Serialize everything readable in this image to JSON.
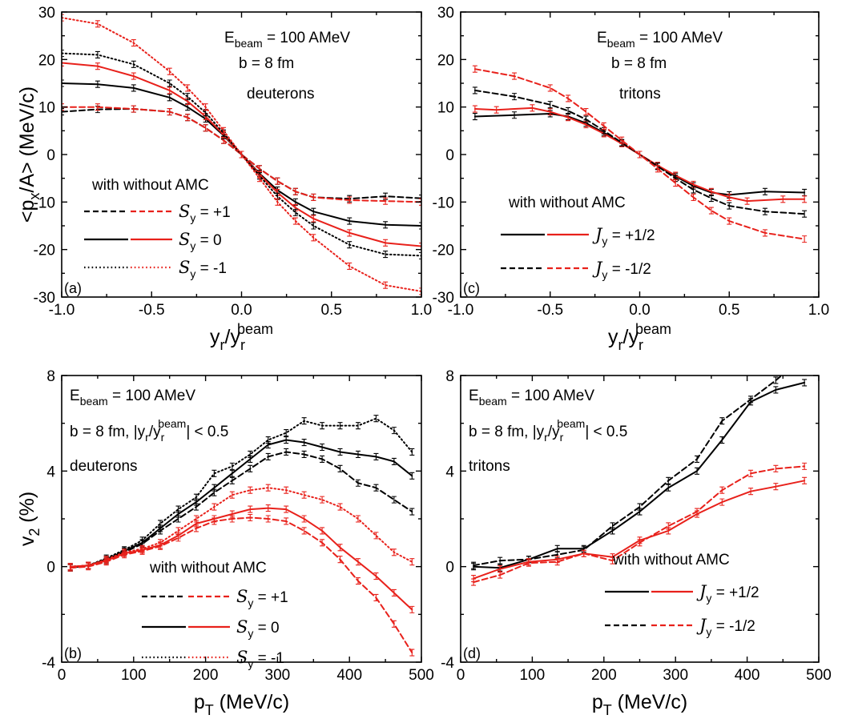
{
  "chart_data": [
    {
      "panel": "(a)",
      "type": "line",
      "xlim": [
        -1.0,
        1.0
      ],
      "ylim": [
        -30,
        30
      ],
      "xticks": [
        -1.0,
        -0.5,
        0.0,
        0.5,
        1.0
      ],
      "xtick_labels": [
        "-1.0",
        "-0.5",
        "0.0",
        "0.5",
        "1.0"
      ],
      "yticks": [
        -30,
        -20,
        -10,
        0,
        10,
        20,
        30
      ],
      "ytick_labels": [
        "-30",
        "-20",
        "-10",
        "0",
        "10",
        "20",
        "30"
      ],
      "ylabel": "<p",
      "ylabel_sub": "x",
      "ylabel_rest": "/A> (MeV/c)",
      "xlabel": "y",
      "xlabel_sub": "r",
      "xlabel_mid": "/y",
      "xlabel_sub2": "r",
      "xlabel_sup": "beam",
      "annotations": {
        "energy_prefix": "E",
        "energy_sub": "beam",
        "energy_value": " = 100 AMeV",
        "impact": "b = 8 fm",
        "particle": "deuterons"
      },
      "legend": {
        "header": "with without  AMC",
        "entries": [
          {
            "style": "dash",
            "symbol": "S",
            "sub": "y",
            "value": " = +1"
          },
          {
            "style": "solid",
            "symbol": "S",
            "sub": "y",
            "value": " = 0"
          },
          {
            "style": "dot",
            "symbol": "S",
            "sub": "y",
            "value": " = -1"
          }
        ]
      },
      "series": [
        {
          "color": "#000000",
          "style": "dash",
          "x": [
            -1.0,
            -0.8,
            -0.6,
            -0.4,
            -0.3,
            -0.2,
            -0.1,
            0.0,
            0.1,
            0.2,
            0.3,
            0.4,
            0.6,
            0.8,
            1.0
          ],
          "y": [
            9,
            9.5,
            9.6,
            9,
            7.8,
            5.6,
            3,
            0,
            -3,
            -5.6,
            -7.8,
            -9,
            -9.3,
            -8.8,
            -9.2
          ]
        },
        {
          "color": "#e8211b",
          "style": "dash",
          "x": [
            -1.0,
            -0.8,
            -0.6,
            -0.4,
            -0.3,
            -0.2,
            -0.1,
            0.0,
            0.1,
            0.2,
            0.3,
            0.4,
            0.6,
            0.8,
            1.0
          ],
          "y": [
            10,
            10,
            9.6,
            9,
            7.8,
            5.6,
            3,
            0,
            -3,
            -5.6,
            -7.8,
            -9,
            -9.6,
            -9.8,
            -10
          ]
        },
        {
          "color": "#000000",
          "style": "solid",
          "x": [
            -1.0,
            -0.8,
            -0.6,
            -0.4,
            -0.3,
            -0.2,
            -0.1,
            0.0,
            0.1,
            0.2,
            0.3,
            0.4,
            0.6,
            0.8,
            1.0
          ],
          "y": [
            15,
            14.8,
            14,
            12,
            10,
            7.5,
            4,
            0,
            -4,
            -7.5,
            -10,
            -12,
            -14,
            -14.8,
            -15
          ]
        },
        {
          "color": "#e8211b",
          "style": "solid",
          "x": [
            -1.0,
            -0.8,
            -0.6,
            -0.4,
            -0.3,
            -0.2,
            -0.1,
            0.0,
            0.1,
            0.2,
            0.3,
            0.4,
            0.6,
            0.8,
            1.0
          ],
          "y": [
            19.3,
            18.6,
            16.5,
            13.5,
            11.2,
            8,
            4.2,
            0,
            -4.2,
            -8,
            -11.2,
            -13.5,
            -16.5,
            -18.6,
            -19.3
          ]
        },
        {
          "color": "#000000",
          "style": "dot",
          "x": [
            -1.0,
            -0.8,
            -0.6,
            -0.4,
            -0.3,
            -0.2,
            -0.1,
            0.0,
            0.1,
            0.2,
            0.3,
            0.4,
            0.6,
            0.8,
            1.0
          ],
          "y": [
            21.3,
            21,
            19,
            15,
            12.2,
            8.8,
            4.5,
            0,
            -4.5,
            -8.8,
            -12.2,
            -15,
            -19,
            -21,
            -21.3
          ]
        },
        {
          "color": "#e8211b",
          "style": "dot",
          "x": [
            -1.0,
            -0.8,
            -0.6,
            -0.4,
            -0.3,
            -0.2,
            -0.1,
            0.0,
            0.1,
            0.2,
            0.3,
            0.4,
            0.6,
            0.8,
            1.0
          ],
          "y": [
            28.8,
            27.5,
            23.5,
            17.5,
            14,
            10,
            5,
            0,
            -5,
            -10,
            -14,
            -17.5,
            -23.5,
            -27.5,
            -28.8
          ]
        }
      ]
    },
    {
      "panel": "(c)",
      "type": "line",
      "xlim": [
        -1.0,
        1.0
      ],
      "ylim": [
        -30,
        30
      ],
      "xticks": [
        -1.0,
        -0.5,
        0.0,
        0.5,
        1.0
      ],
      "xtick_labels": [
        "-1.0",
        "-0.5",
        "0.0",
        "0.5",
        "1.0"
      ],
      "yticks": [
        -30,
        -20,
        -10,
        0,
        10,
        20,
        30
      ],
      "ytick_labels": [
        "-30",
        "-20",
        "-10",
        "0",
        "10",
        "20",
        "30"
      ],
      "xlabel": "y",
      "xlabel_sub": "r",
      "xlabel_mid": "/y",
      "xlabel_sub2": "r",
      "xlabel_sup": "beam",
      "annotations": {
        "energy_prefix": "E",
        "energy_sub": "beam",
        "energy_value": " = 100 AMeV",
        "impact": "b = 8 fm",
        "particle": "tritons"
      },
      "legend": {
        "header": "with without  AMC",
        "entries": [
          {
            "style": "solid",
            "symbol": "J",
            "sub": "y",
            "value": " = +1/2"
          },
          {
            "style": "dash",
            "symbol": "J",
            "sub": "y",
            "value": " = -1/2"
          }
        ]
      },
      "series": [
        {
          "color": "#000000",
          "style": "solid",
          "x": [
            -0.92,
            -0.7,
            -0.5,
            -0.4,
            -0.3,
            -0.2,
            -0.1,
            0.0,
            0.1,
            0.2,
            0.3,
            0.4,
            0.5,
            0.7,
            0.92
          ],
          "y": [
            8,
            8.3,
            8.6,
            8,
            6.6,
            4.6,
            2.4,
            0,
            -2.4,
            -4.6,
            -6.6,
            -8,
            -8.5,
            -7.8,
            -8
          ]
        },
        {
          "color": "#e8211b",
          "style": "solid",
          "x": [
            -0.92,
            -0.8,
            -0.6,
            -0.5,
            -0.4,
            -0.3,
            -0.2,
            -0.1,
            0.0,
            0.1,
            0.2,
            0.3,
            0.4,
            0.5,
            0.6,
            0.8,
            0.92
          ],
          "y": [
            9.6,
            9.4,
            9.8,
            9,
            7.8,
            6.3,
            4.4,
            2.3,
            0,
            -2.3,
            -4.4,
            -6.3,
            -7.8,
            -9,
            -9.8,
            -9.4,
            -9.4
          ]
        },
        {
          "color": "#000000",
          "style": "dash",
          "x": [
            -0.92,
            -0.7,
            -0.5,
            -0.4,
            -0.3,
            -0.2,
            -0.1,
            0.0,
            0.1,
            0.2,
            0.3,
            0.4,
            0.5,
            0.7,
            0.92
          ],
          "y": [
            13.5,
            12.2,
            10.5,
            9.2,
            7.4,
            5,
            2.5,
            0,
            -2.5,
            -5,
            -7.4,
            -9.2,
            -10.8,
            -12,
            -12.5
          ]
        },
        {
          "color": "#e8211b",
          "style": "dash",
          "x": [
            -0.92,
            -0.7,
            -0.5,
            -0.4,
            -0.3,
            -0.2,
            -0.1,
            0.0,
            0.1,
            0.2,
            0.3,
            0.4,
            0.5,
            0.7,
            0.92
          ],
          "y": [
            18,
            16.5,
            14,
            11.8,
            9,
            6,
            3,
            0,
            -3,
            -6,
            -9,
            -11.8,
            -14,
            -16.5,
            -17.8
          ]
        }
      ]
    },
    {
      "panel": "(b)",
      "type": "line",
      "xlim": [
        0,
        500
      ],
      "ylim": [
        -4,
        8
      ],
      "xticks": [
        0,
        100,
        200,
        300,
        400,
        500
      ],
      "xtick_labels": [
        "0",
        "100",
        "200",
        "300",
        "400",
        "500"
      ],
      "yticks": [
        -4,
        0,
        4,
        8
      ],
      "ytick_labels": [
        "-4",
        "0",
        "4",
        "8"
      ],
      "ylabel": "v",
      "ylabel_sub": "2",
      "ylabel_rest": " (%)",
      "xlabel": "p",
      "xlabel_sub": "T",
      "xlabel_rest": " (MeV/c)",
      "annotations": {
        "energy_prefix": "E",
        "energy_sub": "beam",
        "energy_value": " = 100 AMeV",
        "impact": "b = 8 fm, |y",
        "impact_sub": "r",
        "impact_mid": "/y",
        "impact_sub2": "r",
        "impact_sup": "beam",
        "impact_rest": "| < 0.5",
        "particle": "deuterons"
      },
      "legend": {
        "header": "with without  AMC",
        "entries": [
          {
            "style": "dash",
            "symbol": "S",
            "sub": "y",
            "value": " = +1"
          },
          {
            "style": "solid",
            "symbol": "S",
            "sub": "y",
            "value": " = 0"
          },
          {
            "style": "dot",
            "symbol": "S",
            "sub": "y",
            "value": " = -1"
          }
        ]
      },
      "series": [
        {
          "color": "#000000",
          "style": "dot",
          "x": [
            12,
            37,
            62,
            87,
            112,
            137,
            162,
            187,
            212,
            237,
            262,
            287,
            312,
            337,
            362,
            387,
            412,
            437,
            462,
            487
          ],
          "y": [
            0,
            0.05,
            0.35,
            0.7,
            1.1,
            1.8,
            2.4,
            2.9,
            3.9,
            4.2,
            4.7,
            5.3,
            5.6,
            6.1,
            5.9,
            5.9,
            5.9,
            6.2,
            5.7,
            4.8
          ]
        },
        {
          "color": "#000000",
          "style": "solid",
          "x": [
            12,
            37,
            62,
            87,
            112,
            137,
            162,
            187,
            212,
            237,
            262,
            287,
            312,
            337,
            362,
            387,
            412,
            437,
            462,
            487
          ],
          "y": [
            -0.05,
            0.05,
            0.3,
            0.65,
            1.0,
            1.6,
            2.2,
            2.7,
            3.3,
            3.9,
            4.5,
            5.1,
            5.3,
            5.2,
            5.0,
            4.8,
            4.7,
            4.6,
            4.4,
            3.8
          ]
        },
        {
          "color": "#000000",
          "style": "dash",
          "x": [
            12,
            37,
            62,
            87,
            112,
            137,
            162,
            187,
            212,
            237,
            262,
            287,
            312,
            337,
            362,
            387,
            412,
            437,
            462,
            487
          ],
          "y": [
            -0.05,
            0.05,
            0.25,
            0.6,
            0.95,
            1.5,
            2.0,
            2.5,
            3.1,
            3.6,
            4.1,
            4.6,
            4.8,
            4.7,
            4.5,
            4.1,
            3.5,
            3.3,
            2.8,
            2.3
          ]
        },
        {
          "color": "#e8211b",
          "style": "dot",
          "x": [
            12,
            37,
            62,
            87,
            112,
            137,
            162,
            187,
            212,
            237,
            262,
            287,
            312,
            337,
            362,
            387,
            412,
            437,
            462,
            487
          ],
          "y": [
            0,
            0.05,
            0.3,
            0.6,
            0.75,
            1.0,
            1.5,
            2.0,
            2.5,
            3.0,
            3.2,
            3.3,
            3.2,
            3.0,
            2.8,
            2.5,
            2.0,
            1.3,
            0.6,
            0.2
          ]
        },
        {
          "color": "#e8211b",
          "style": "solid",
          "x": [
            12,
            37,
            62,
            87,
            112,
            137,
            162,
            187,
            212,
            237,
            262,
            287,
            312,
            337,
            362,
            387,
            412,
            437,
            462,
            487
          ],
          "y": [
            0,
            0.05,
            0.25,
            0.55,
            0.7,
            0.9,
            1.3,
            1.8,
            2.0,
            2.2,
            2.4,
            2.45,
            2.4,
            2.0,
            1.5,
            0.8,
            0.2,
            -0.4,
            -1.1,
            -1.8
          ]
        },
        {
          "color": "#e8211b",
          "style": "dash",
          "x": [
            12,
            37,
            62,
            87,
            112,
            137,
            162,
            187,
            212,
            237,
            262,
            287,
            312,
            337,
            362,
            387,
            412,
            437,
            462,
            487
          ],
          "y": [
            -0.05,
            0,
            0.2,
            0.5,
            0.65,
            0.85,
            1.2,
            1.6,
            1.9,
            2.0,
            2.05,
            2.0,
            1.9,
            1.5,
            1.0,
            0.3,
            -0.6,
            -1.3,
            -2.4,
            -3.6
          ]
        }
      ]
    },
    {
      "panel": "(d)",
      "type": "line",
      "xlim": [
        0,
        500
      ],
      "ylim": [
        -4,
        8
      ],
      "xticks": [
        0,
        100,
        200,
        300,
        400,
        500
      ],
      "xtick_labels": [
        "0",
        "100",
        "200",
        "300",
        "400",
        "500"
      ],
      "yticks": [
        -4,
        0,
        4,
        8
      ],
      "ytick_labels": [
        "-4",
        "0",
        "4",
        "8"
      ],
      "xlabel": "p",
      "xlabel_sub": "T",
      "xlabel_rest": " (MeV/c)",
      "annotations": {
        "energy_prefix": "E",
        "energy_sub": "beam",
        "energy_value": " = 100 AMeV",
        "impact": "b = 8 fm, |y",
        "impact_sub": "r",
        "impact_mid": "/y",
        "impact_sub2": "r",
        "impact_sup": "beam",
        "impact_rest": "| < 0.5",
        "particle": "tritons"
      },
      "legend": {
        "header": "with without  AMC",
        "entries": [
          {
            "style": "solid",
            "symbol": "J",
            "sub": "y",
            "value": " = +1/2"
          },
          {
            "style": "dash",
            "symbol": "J",
            "sub": "y",
            "value": " = -1/2"
          }
        ]
      },
      "series": [
        {
          "color": "#000000",
          "style": "solid",
          "x": [
            18,
            55,
            95,
            135,
            172,
            212,
            250,
            290,
            330,
            365,
            405,
            440,
            480
          ],
          "y": [
            0,
            -0.05,
            0.3,
            0.75,
            0.75,
            1.5,
            2.3,
            3.3,
            4.0,
            5.3,
            6.9,
            7.4,
            7.7
          ]
        },
        {
          "color": "#000000",
          "style": "dash",
          "x": [
            18,
            55,
            95,
            135,
            172,
            212,
            250,
            290,
            330,
            365,
            405,
            440,
            480
          ],
          "y": [
            0.05,
            0.25,
            0.3,
            0.5,
            0.7,
            1.7,
            2.5,
            3.6,
            4.5,
            6.1,
            7.0,
            7.8,
            8.8
          ]
        },
        {
          "color": "#e8211b",
          "style": "solid",
          "x": [
            18,
            55,
            95,
            135,
            172,
            212,
            250,
            290,
            330,
            365,
            405,
            440,
            480
          ],
          "y": [
            -0.5,
            -0.1,
            0.2,
            0.3,
            0.55,
            0.4,
            1.1,
            1.5,
            2.2,
            2.7,
            3.15,
            3.35,
            3.6
          ]
        },
        {
          "color": "#e8211b",
          "style": "dash",
          "x": [
            18,
            55,
            95,
            135,
            172,
            212,
            250,
            290,
            330,
            365,
            405,
            440,
            480
          ],
          "y": [
            -0.65,
            -0.35,
            0.15,
            0.2,
            0.55,
            0.25,
            1.0,
            1.7,
            2.3,
            3.2,
            3.9,
            4.1,
            4.2
          ]
        }
      ]
    }
  ]
}
